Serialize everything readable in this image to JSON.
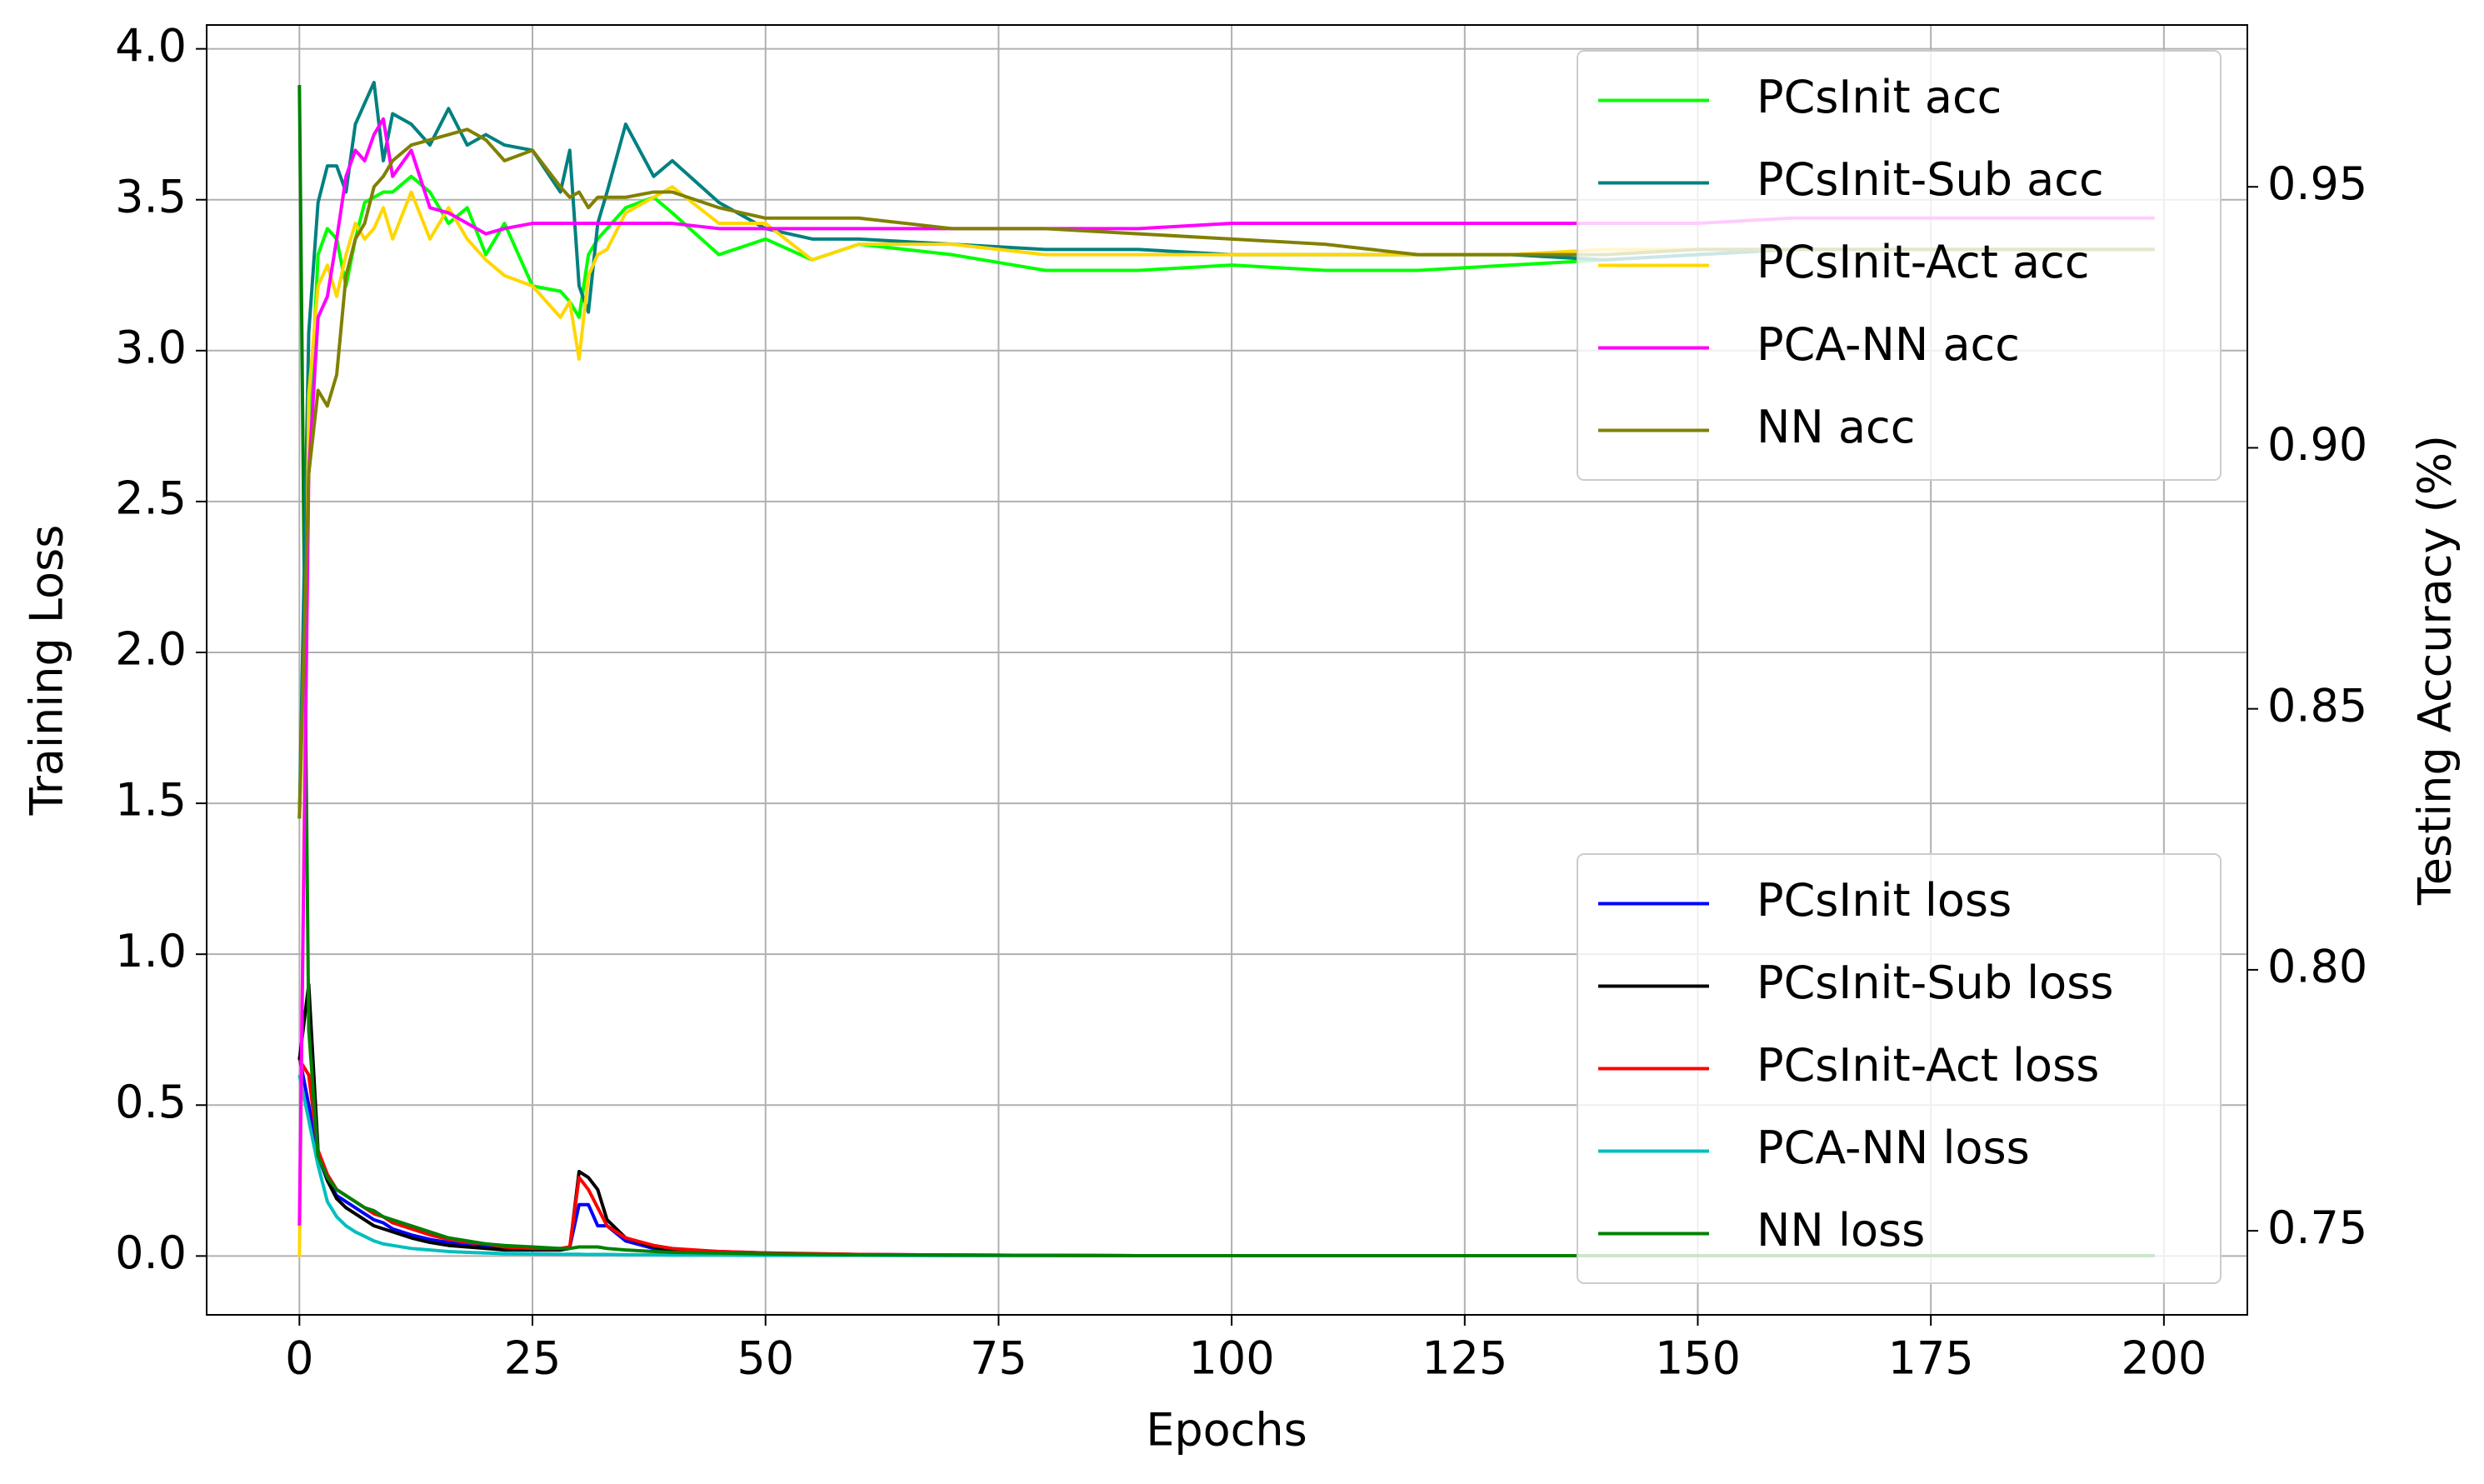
{
  "chart_data": {
    "type": "line",
    "xlabel": "Epochs",
    "ylabel": "Training Loss",
    "y2label": "Testing Accuracy (%)",
    "x": [
      0,
      1,
      2,
      3,
      4,
      5,
      6,
      7,
      8,
      9,
      10,
      12,
      14,
      16,
      18,
      20,
      22,
      25,
      28,
      29,
      30,
      31,
      32,
      33,
      35,
      38,
      40,
      45,
      50,
      55,
      60,
      70,
      80,
      90,
      100,
      110,
      120,
      130,
      140,
      150,
      160,
      170,
      180,
      190,
      199
    ],
    "xlim": [
      -9.95,
      208.95
    ],
    "xticks": [
      0,
      25,
      50,
      75,
      100,
      125,
      150,
      175,
      200
    ],
    "ylim": [
      -0.195,
      4.079
    ],
    "yticks": [
      {
        "value": 0,
        "label": "0.0"
      },
      0.5,
      {
        "value": 1,
        "label": "1.0"
      },
      1.5,
      {
        "value": 2,
        "label": "2.0"
      },
      2.5,
      {
        "value": 3,
        "label": "3.0"
      },
      3.5,
      {
        "value": 4,
        "label": "4.0"
      }
    ],
    "y2lim": [
      0.7339,
      0.981
    ],
    "y2ticks": [
      0.75,
      {
        "value": 0.8,
        "label": "0.80"
      },
      0.85,
      {
        "value": 0.9,
        "label": "0.90"
      },
      0.95
    ],
    "grid": true,
    "legend": {
      "y2": "upper right",
      "y": "lower right"
    },
    "series": [
      {
        "name": "PCsInit acc",
        "color": "#00ff00",
        "axis": "y2",
        "values": [
          0.829,
          0.9,
          0.937,
          0.942,
          0.94,
          0.931,
          0.94,
          0.947,
          0.948,
          0.949,
          0.949,
          0.952,
          0.949,
          0.943,
          0.946,
          0.937,
          0.943,
          0.931,
          0.93,
          0.928,
          0.925,
          0.937,
          0.94,
          0.942,
          0.946,
          0.948,
          0.945,
          0.937,
          0.94,
          0.936,
          0.939,
          0.937,
          0.934,
          0.934,
          0.935,
          0.934,
          0.934,
          0.935,
          0.936,
          0.937,
          0.938,
          0.938,
          0.938,
          0.938,
          0.938
        ]
      },
      {
        "name": "PCsInit-Sub acc",
        "color": "#008080",
        "axis": "y2",
        "values": [
          0.829,
          0.922,
          0.947,
          0.954,
          0.954,
          0.949,
          0.962,
          0.966,
          0.97,
          0.955,
          0.964,
          0.962,
          0.958,
          0.965,
          0.958,
          0.96,
          0.958,
          0.957,
          0.949,
          0.957,
          0.931,
          0.926,
          0.943,
          0.949,
          0.962,
          0.952,
          0.955,
          0.947,
          0.942,
          0.94,
          0.94,
          0.939,
          0.938,
          0.938,
          0.937,
          0.937,
          0.937,
          0.937,
          0.936,
          0.937,
          0.938,
          0.938,
          0.938,
          0.938,
          0.938
        ]
      },
      {
        "name": "PCsInit-Act acc",
        "color": "#ffd700",
        "axis": "y2",
        "values": [
          0.745,
          0.91,
          0.931,
          0.935,
          0.929,
          0.937,
          0.943,
          0.94,
          0.942,
          0.946,
          0.94,
          0.949,
          0.94,
          0.946,
          0.94,
          0.936,
          0.933,
          0.931,
          0.925,
          0.928,
          0.917,
          0.933,
          0.937,
          0.938,
          0.945,
          0.948,
          0.95,
          0.943,
          0.943,
          0.936,
          0.939,
          0.939,
          0.937,
          0.937,
          0.937,
          0.937,
          0.937,
          0.937,
          0.938,
          0.938,
          0.938,
          0.938,
          0.938,
          0.938,
          0.938
        ]
      },
      {
        "name": "PCA-NN acc",
        "color": "#ff00ff",
        "axis": "y2",
        "values": [
          0.751,
          0.895,
          0.925,
          0.929,
          0.94,
          0.952,
          0.957,
          0.955,
          0.96,
          0.963,
          0.952,
          0.957,
          0.946,
          0.945,
          0.943,
          0.941,
          0.942,
          0.943,
          0.943,
          0.943,
          0.943,
          0.943,
          0.943,
          0.943,
          0.943,
          0.943,
          0.943,
          0.942,
          0.942,
          0.942,
          0.942,
          0.942,
          0.942,
          0.942,
          0.943,
          0.943,
          0.943,
          0.943,
          0.943,
          0.943,
          0.944,
          0.944,
          0.944,
          0.944,
          0.944
        ]
      },
      {
        "name": "NN acc",
        "color": "#808000",
        "axis": "y2",
        "values": [
          0.829,
          0.895,
          0.911,
          0.908,
          0.914,
          0.933,
          0.94,
          0.943,
          0.95,
          0.952,
          0.955,
          0.958,
          0.959,
          0.96,
          0.961,
          0.959,
          0.955,
          0.957,
          0.95,
          0.948,
          0.949,
          0.946,
          0.948,
          0.948,
          0.948,
          0.949,
          0.949,
          0.946,
          0.944,
          0.944,
          0.944,
          0.942,
          0.942,
          0.941,
          0.94,
          0.939,
          0.937,
          0.937,
          0.937,
          0.938,
          0.938,
          0.938,
          0.938,
          0.938,
          0.938
        ]
      },
      {
        "name": "PCsInit loss",
        "color": "#0000ff",
        "values": [
          0.66,
          0.5,
          0.33,
          0.25,
          0.2,
          0.18,
          0.16,
          0.14,
          0.12,
          0.11,
          0.09,
          0.07,
          0.055,
          0.045,
          0.035,
          0.03,
          0.025,
          0.02,
          0.02,
          0.03,
          0.17,
          0.17,
          0.1,
          0.1,
          0.05,
          0.025,
          0.02,
          0.015,
          0.01,
          0.007,
          0.005,
          0.003,
          0.002,
          0.001,
          0.001,
          0.001,
          0.001,
          0.001,
          0.001,
          0.001,
          0.001,
          0.001,
          0.001,
          0.001,
          0.001
        ]
      },
      {
        "name": "PCsInit-Sub loss",
        "color": "#000000",
        "values": [
          0.65,
          0.9,
          0.35,
          0.25,
          0.19,
          0.16,
          0.14,
          0.12,
          0.1,
          0.09,
          0.08,
          0.06,
          0.045,
          0.035,
          0.03,
          0.025,
          0.02,
          0.02,
          0.02,
          0.025,
          0.28,
          0.26,
          0.22,
          0.12,
          0.06,
          0.03,
          0.02,
          0.012,
          0.008,
          0.005,
          0.004,
          0.002,
          0.002,
          0.001,
          0.001,
          0.001,
          0.001,
          0.001,
          0.001,
          0.001,
          0.001,
          0.001,
          0.001,
          0.001,
          0.001
        ]
      },
      {
        "name": "PCsInit-Act loss",
        "color": "#ff0000",
        "values": [
          0.65,
          0.6,
          0.35,
          0.27,
          0.22,
          0.2,
          0.18,
          0.16,
          0.14,
          0.13,
          0.11,
          0.09,
          0.07,
          0.055,
          0.045,
          0.04,
          0.03,
          0.025,
          0.025,
          0.03,
          0.26,
          0.22,
          0.16,
          0.1,
          0.06,
          0.035,
          0.025,
          0.015,
          0.01,
          0.008,
          0.005,
          0.003,
          0.002,
          0.001,
          0.001,
          0.001,
          0.001,
          0.001,
          0.001,
          0.001,
          0.001,
          0.001,
          0.001,
          0.001,
          0.001
        ]
      },
      {
        "name": "PCA-NN loss",
        "color": "#00bfbf",
        "values": [
          0.6,
          0.45,
          0.3,
          0.18,
          0.13,
          0.1,
          0.08,
          0.065,
          0.05,
          0.04,
          0.035,
          0.025,
          0.02,
          0.015,
          0.012,
          0.01,
          0.008,
          0.007,
          0.006,
          0.006,
          0.006,
          0.005,
          0.005,
          0.005,
          0.004,
          0.004,
          0.003,
          0.003,
          0.002,
          0.002,
          0.002,
          0.001,
          0.001,
          0.001,
          0.001,
          0.001,
          0.001,
          0.001,
          0.001,
          0.001,
          0.001,
          0.001,
          0.001,
          0.001,
          0.001
        ]
      },
      {
        "name": "NN loss",
        "color": "#008000",
        "values": [
          3.88,
          0.75,
          0.33,
          0.26,
          0.22,
          0.2,
          0.18,
          0.16,
          0.15,
          0.13,
          0.12,
          0.1,
          0.08,
          0.06,
          0.05,
          0.04,
          0.035,
          0.03,
          0.025,
          0.025,
          0.03,
          0.03,
          0.03,
          0.025,
          0.02,
          0.015,
          0.012,
          0.01,
          0.007,
          0.005,
          0.004,
          0.003,
          0.002,
          0.001,
          0.001,
          0.001,
          0.001,
          0.001,
          0.001,
          0.001,
          0.001,
          0.001,
          0.001,
          0.001,
          0.001
        ]
      }
    ]
  }
}
